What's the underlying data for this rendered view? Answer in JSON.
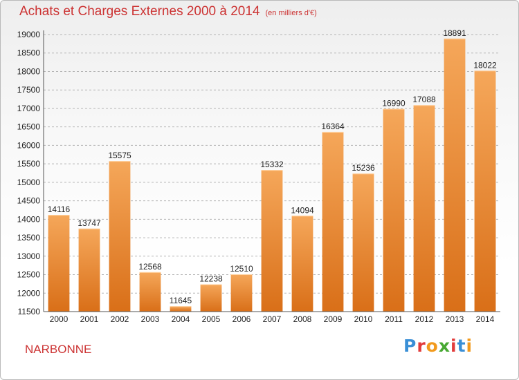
{
  "header": {
    "title": "Achats et Charges Externes 2000 à 2014",
    "subtitle": "(en milliers d'€)"
  },
  "footer": {
    "city": "NARBONNE",
    "logo_text": "Proxiti",
    "logo_colors": [
      "#3a8fd6",
      "#e23b3b",
      "#f29a1c",
      "#47a832",
      "#e23b3b",
      "#3a8fd6",
      "#f29a1c"
    ]
  },
  "colors": {
    "bar_top": "#f5a75a",
    "bar_bottom": "#d96f18",
    "grid": "#b4b4b4",
    "axis": "#555555"
  },
  "chart_data": {
    "type": "bar",
    "title": "Achats et Charges Externes 2000 à 2014",
    "subtitle": "(en milliers d'€)",
    "xlabel": "",
    "ylabel": "",
    "categories": [
      "2000",
      "2001",
      "2002",
      "2003",
      "2004",
      "2005",
      "2006",
      "2007",
      "2008",
      "2009",
      "2010",
      "2011",
      "2012",
      "2013",
      "2014"
    ],
    "values": [
      14116,
      13747,
      15575,
      12568,
      11645,
      12238,
      12510,
      15332,
      14094,
      16364,
      15236,
      16990,
      17088,
      18891,
      18022
    ],
    "data_labels": [
      "14116",
      "13747",
      "15575",
      "12568",
      "11645",
      "12238",
      "12510",
      "15332",
      "14094",
      "16364",
      "15236",
      "16990",
      "17088",
      "18891",
      "18022"
    ],
    "ylim": [
      11500,
      19000
    ],
    "yticks": [
      11500,
      12000,
      12500,
      13000,
      13500,
      14000,
      14500,
      15000,
      15500,
      16000,
      16500,
      17000,
      17500,
      18000,
      18500,
      19000
    ],
    "grid": true,
    "legend": "none"
  }
}
